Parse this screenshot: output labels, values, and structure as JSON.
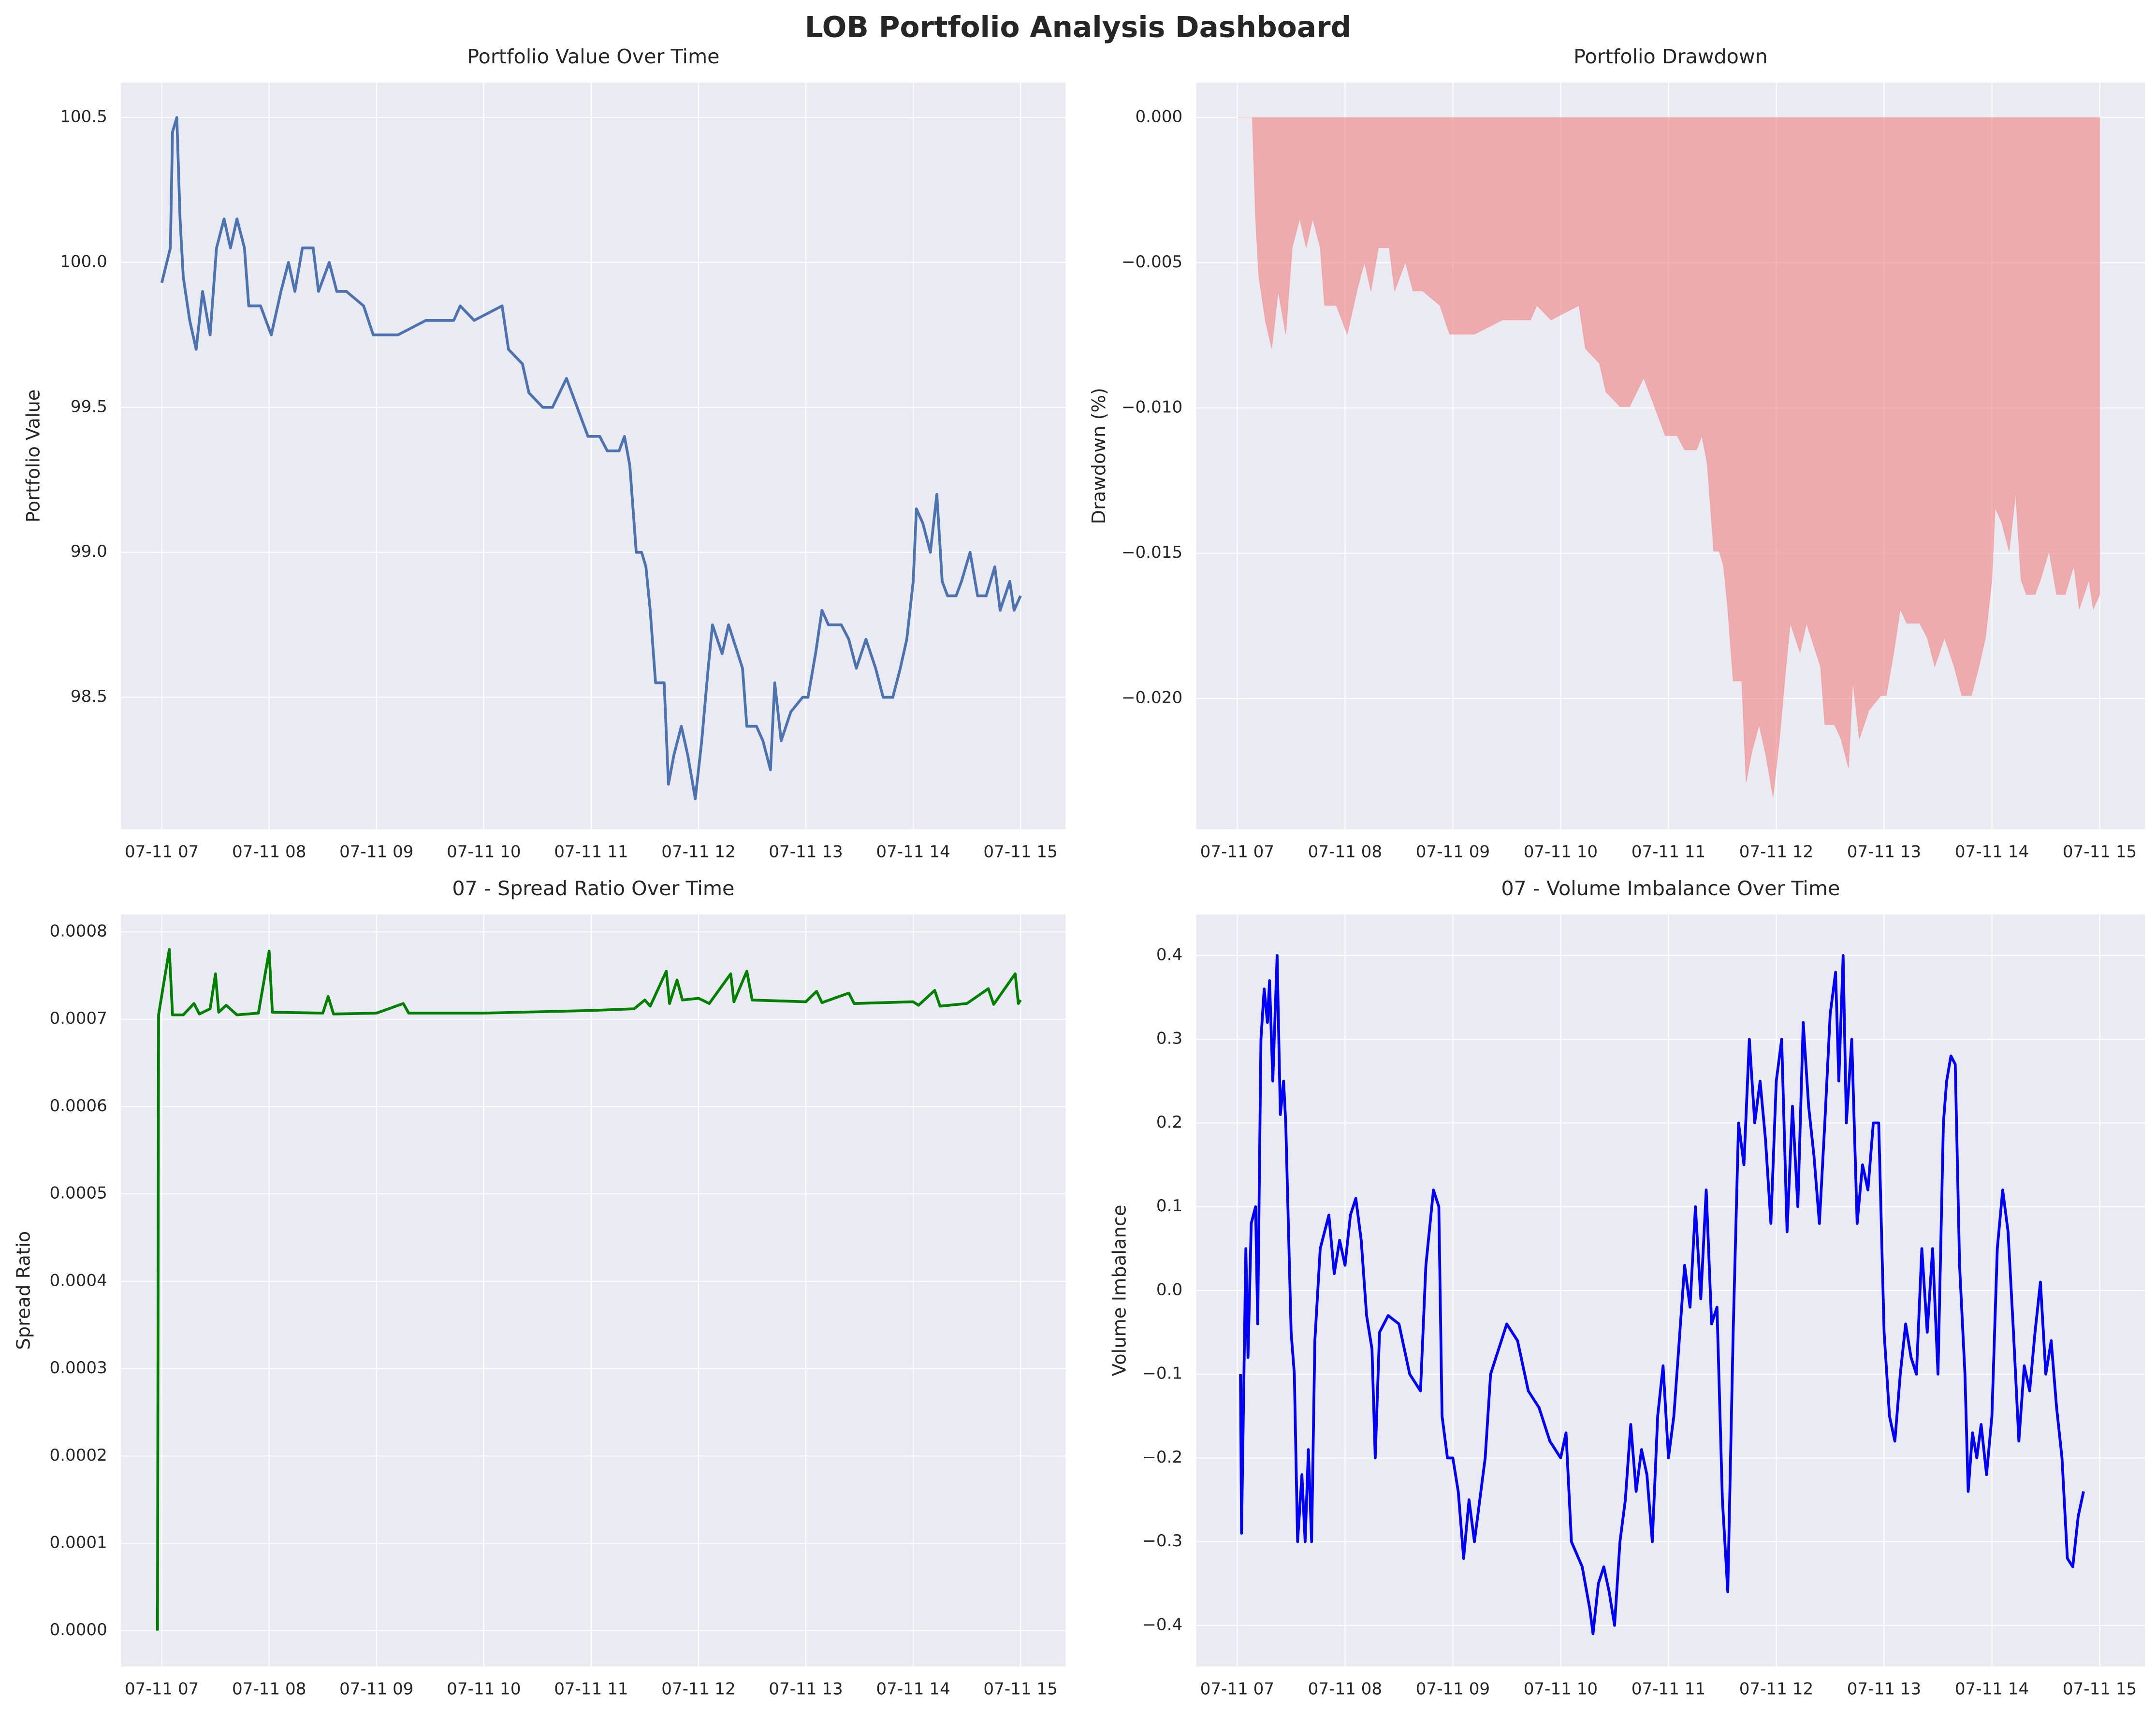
{
  "title": "LOB Portfolio Analysis Dashboard",
  "chart_data": [
    {
      "type": "line",
      "title": "Portfolio Value Over Time",
      "ylabel": "Portfolio Value",
      "color": "#4c72b0",
      "grid": true,
      "x": [
        7.0,
        7.08,
        7.1,
        7.14,
        7.17,
        7.2,
        7.26,
        7.32,
        7.38,
        7.45,
        7.51,
        7.58,
        7.64,
        7.7,
        7.77,
        7.81,
        7.92,
        8.02,
        8.11,
        8.18,
        8.24,
        8.31,
        8.41,
        8.46,
        8.56,
        8.63,
        8.72,
        8.88,
        8.97,
        9.2,
        9.46,
        9.72,
        9.78,
        9.91,
        10.17,
        10.23,
        10.36,
        10.42,
        10.55,
        10.64,
        10.77,
        10.87,
        10.97,
        11.08,
        11.15,
        11.26,
        11.31,
        11.36,
        11.42,
        11.47,
        11.51,
        11.55,
        11.6,
        11.68,
        11.72,
        11.77,
        11.84,
        11.9,
        11.97,
        12.03,
        12.09,
        12.13,
        12.22,
        12.28,
        12.41,
        12.45,
        12.54,
        12.6,
        12.67,
        12.71,
        12.77,
        12.86,
        12.97,
        13.02,
        13.09,
        13.15,
        13.21,
        13.33,
        13.4,
        13.47,
        13.56,
        13.65,
        13.72,
        13.81,
        13.88,
        13.94,
        14.0,
        14.03,
        14.09,
        14.16,
        14.22,
        14.27,
        14.32,
        14.4,
        14.45,
        14.53,
        14.6,
        14.68,
        14.76,
        14.81,
        14.9,
        14.94,
        15.0
      ],
      "values": [
        99.93,
        100.05,
        100.45,
        100.5,
        100.15,
        99.95,
        99.8,
        99.7,
        99.9,
        99.75,
        100.05,
        100.15,
        100.05,
        100.15,
        100.05,
        99.85,
        99.85,
        99.75,
        99.9,
        100.0,
        99.9,
        100.05,
        100.05,
        99.9,
        100.0,
        99.9,
        99.9,
        99.85,
        99.75,
        99.75,
        99.8,
        99.8,
        99.85,
        99.8,
        99.85,
        99.7,
        99.65,
        99.55,
        99.5,
        99.5,
        99.6,
        99.5,
        99.4,
        99.4,
        99.35,
        99.35,
        99.4,
        99.3,
        99.0,
        99.0,
        98.95,
        98.8,
        98.55,
        98.55,
        98.2,
        98.3,
        98.4,
        98.3,
        98.15,
        98.35,
        98.6,
        98.75,
        98.65,
        98.75,
        98.6,
        98.4,
        98.4,
        98.35,
        98.25,
        98.55,
        98.35,
        98.45,
        98.5,
        98.5,
        98.65,
        98.8,
        98.75,
        98.75,
        98.7,
        98.6,
        98.7,
        98.6,
        98.5,
        98.5,
        98.6,
        98.7,
        98.9,
        99.15,
        99.1,
        99.0,
        99.2,
        98.9,
        98.85,
        98.85,
        98.9,
        99.0,
        98.85,
        98.85,
        98.95,
        98.8,
        98.9,
        98.8,
        98.85
      ],
      "xlim": [
        6.62,
        15.42
      ],
      "xticks": [
        {
          "value": 7,
          "label": "07-11 07"
        },
        {
          "value": 8,
          "label": "07-11 08"
        },
        {
          "value": 9,
          "label": "07-11 09"
        },
        {
          "value": 10,
          "label": "07-11 10"
        },
        {
          "value": 11,
          "label": "07-11 11"
        },
        {
          "value": 12,
          "label": "07-11 12"
        },
        {
          "value": 13,
          "label": "07-11 13"
        },
        {
          "value": 14,
          "label": "07-11 14"
        },
        {
          "value": 15,
          "label": "07-11 15"
        }
      ],
      "ylim": [
        98.045,
        100.62
      ],
      "yticks": [
        98.5,
        {
          "value": 99,
          "label": "99.0"
        },
        99.5,
        {
          "value": 100,
          "label": "100.0"
        },
        100.5
      ]
    },
    {
      "type": "area",
      "title": "Portfolio Drawdown",
      "ylabel": "Drawdown (%)",
      "color": "#f08080",
      "grid": true,
      "x": [
        7.0,
        7.08,
        7.1,
        7.14,
        7.17,
        7.2,
        7.26,
        7.32,
        7.38,
        7.45,
        7.51,
        7.58,
        7.64,
        7.7,
        7.77,
        7.81,
        7.92,
        8.02,
        8.11,
        8.18,
        8.24,
        8.31,
        8.41,
        8.46,
        8.56,
        8.63,
        8.72,
        8.88,
        8.97,
        9.2,
        9.46,
        9.72,
        9.78,
        9.91,
        10.17,
        10.23,
        10.36,
        10.42,
        10.55,
        10.64,
        10.77,
        10.87,
        10.97,
        11.08,
        11.15,
        11.26,
        11.31,
        11.36,
        11.42,
        11.47,
        11.51,
        11.55,
        11.6,
        11.68,
        11.72,
        11.77,
        11.84,
        11.9,
        11.97,
        12.03,
        12.09,
        12.13,
        12.22,
        12.28,
        12.41,
        12.45,
        12.54,
        12.6,
        12.67,
        12.71,
        12.77,
        12.86,
        12.97,
        13.02,
        13.09,
        13.15,
        13.21,
        13.33,
        13.4,
        13.47,
        13.56,
        13.65,
        13.72,
        13.81,
        13.88,
        13.94,
        14.0,
        14.03,
        14.09,
        14.16,
        14.22,
        14.27,
        14.32,
        14.4,
        14.45,
        14.53,
        14.6,
        14.68,
        14.76,
        14.81,
        14.9,
        14.94,
        15.0
      ],
      "values": [
        0,
        0,
        0,
        0,
        -0.00348,
        -0.00547,
        -0.00697,
        -0.00796,
        -0.00597,
        -0.00746,
        -0.00448,
        -0.00348,
        -0.00448,
        -0.00348,
        -0.00448,
        -0.00647,
        -0.00647,
        -0.00746,
        -0.00597,
        -0.00498,
        -0.00597,
        -0.00448,
        -0.00448,
        -0.00597,
        -0.00498,
        -0.00597,
        -0.00597,
        -0.00647,
        -0.00746,
        -0.00746,
        -0.00697,
        -0.00697,
        -0.00647,
        -0.00697,
        -0.00647,
        -0.00796,
        -0.00846,
        -0.00945,
        -0.00995,
        -0.00995,
        -0.00896,
        -0.00995,
        -0.01095,
        -0.01095,
        -0.01144,
        -0.01144,
        -0.01095,
        -0.01194,
        -0.01493,
        -0.01493,
        -0.01542,
        -0.01692,
        -0.0194,
        -0.0194,
        -0.02289,
        -0.02189,
        -0.0209,
        -0.02189,
        -0.02338,
        -0.02139,
        -0.0189,
        -0.01741,
        -0.01841,
        -0.01741,
        -0.0189,
        -0.0209,
        -0.0209,
        -0.02139,
        -0.02239,
        -0.0194,
        -0.02139,
        -0.0204,
        -0.0199,
        -0.0199,
        -0.01841,
        -0.01692,
        -0.01741,
        -0.01741,
        -0.01791,
        -0.0189,
        -0.01791,
        -0.0189,
        -0.0199,
        -0.0199,
        -0.0189,
        -0.01791,
        -0.01592,
        -0.01343,
        -0.01393,
        -0.01493,
        -0.01294,
        -0.01592,
        -0.01642,
        -0.01642,
        -0.01592,
        -0.01493,
        -0.01642,
        -0.01642,
        -0.01542,
        -0.01692,
        -0.01592,
        -0.01692,
        -0.01642
      ],
      "xlim": [
        6.62,
        15.42
      ],
      "xticks": [
        {
          "value": 7,
          "label": "07-11 07"
        },
        {
          "value": 8,
          "label": "07-11 08"
        },
        {
          "value": 9,
          "label": "07-11 09"
        },
        {
          "value": 10,
          "label": "07-11 10"
        },
        {
          "value": 11,
          "label": "07-11 11"
        },
        {
          "value": 12,
          "label": "07-11 12"
        },
        {
          "value": 13,
          "label": "07-11 13"
        },
        {
          "value": 14,
          "label": "07-11 14"
        },
        {
          "value": 15,
          "label": "07-11 15"
        }
      ],
      "ylim": [
        -0.0245,
        0.0012
      ],
      "yticks": [
        {
          "value": 0,
          "label": "0.000"
        },
        {
          "value": -0.005,
          "label": "−0.005"
        },
        {
          "value": -0.01,
          "label": "−0.010"
        },
        {
          "value": -0.015,
          "label": "−0.015"
        },
        {
          "value": -0.02,
          "label": "−0.020"
        }
      ]
    },
    {
      "type": "line",
      "title": "07 - Spread Ratio Over Time",
      "ylabel": "Spread Ratio",
      "color": "#008000",
      "grid": true,
      "x": [
        6.96,
        6.97,
        7.07,
        7.1,
        7.2,
        7.3,
        7.35,
        7.45,
        7.5,
        7.53,
        7.6,
        7.7,
        7.9,
        8.0,
        8.03,
        8.5,
        8.55,
        8.6,
        9.0,
        9.25,
        9.3,
        10.0,
        11.0,
        11.4,
        11.5,
        11.55,
        11.7,
        11.73,
        11.8,
        11.85,
        12.0,
        12.1,
        12.3,
        12.33,
        12.45,
        12.5,
        13.0,
        13.1,
        13.15,
        13.4,
        13.45,
        14.0,
        14.05,
        14.2,
        14.25,
        14.5,
        14.7,
        14.75,
        14.95,
        14.98,
        15.0
      ],
      "values": [
        0.0,
        0.000705,
        0.00078,
        0.000705,
        0.000705,
        0.000718,
        0.000706,
        0.000712,
        0.000752,
        0.000708,
        0.000716,
        0.000705,
        0.000707,
        0.000778,
        0.000708,
        0.000707,
        0.000726,
        0.000706,
        0.000707,
        0.000718,
        0.000707,
        0.000707,
        0.00071,
        0.000712,
        0.000722,
        0.000715,
        0.000755,
        0.000718,
        0.000745,
        0.000722,
        0.000724,
        0.000718,
        0.000752,
        0.00072,
        0.000755,
        0.000722,
        0.00072,
        0.000732,
        0.000719,
        0.00073,
        0.000718,
        0.00072,
        0.000716,
        0.000733,
        0.000715,
        0.000718,
        0.000735,
        0.000717,
        0.000752,
        0.000718,
        0.000722
      ],
      "xlim": [
        6.62,
        15.42
      ],
      "xticks": [
        {
          "value": 7,
          "label": "07-11 07"
        },
        {
          "value": 8,
          "label": "07-11 08"
        },
        {
          "value": 9,
          "label": "07-11 09"
        },
        {
          "value": 10,
          "label": "07-11 10"
        },
        {
          "value": 11,
          "label": "07-11 11"
        },
        {
          "value": 12,
          "label": "07-11 12"
        },
        {
          "value": 13,
          "label": "07-11 13"
        },
        {
          "value": 14,
          "label": "07-11 14"
        },
        {
          "value": 15,
          "label": "07-11 15"
        }
      ],
      "ylim": [
        -4.1e-05,
        0.00082
      ],
      "yticks": [
        {
          "value": 0,
          "label": "0.0000"
        },
        {
          "value": 0.0001,
          "label": "0.0001"
        },
        {
          "value": 0.0002,
          "label": "0.0002"
        },
        {
          "value": 0.0003,
          "label": "0.0003"
        },
        {
          "value": 0.0004,
          "label": "0.0004"
        },
        {
          "value": 0.0005,
          "label": "0.0005"
        },
        {
          "value": 0.0006,
          "label": "0.0006"
        },
        {
          "value": 0.0007,
          "label": "0.0007"
        },
        {
          "value": 0.0008,
          "label": "0.0008"
        }
      ]
    },
    {
      "type": "line",
      "title": "07 - Volume Imbalance Over Time",
      "ylabel": "Volume Imbalance",
      "color": "#0000ff",
      "grid": true,
      "x": [
        7.03,
        7.04,
        7.08,
        7.1,
        7.13,
        7.17,
        7.19,
        7.22,
        7.25,
        7.28,
        7.3,
        7.33,
        7.37,
        7.4,
        7.43,
        7.45,
        7.5,
        7.53,
        7.56,
        7.6,
        7.63,
        7.66,
        7.69,
        7.72,
        7.77,
        7.85,
        7.9,
        7.95,
        8.0,
        8.05,
        8.1,
        8.15,
        8.2,
        8.25,
        8.28,
        8.32,
        8.4,
        8.5,
        8.6,
        8.7,
        8.75,
        8.82,
        8.87,
        8.9,
        8.95,
        9.0,
        9.05,
        9.1,
        9.15,
        9.2,
        9.3,
        9.35,
        9.4,
        9.5,
        9.6,
        9.7,
        9.8,
        9.9,
        10.0,
        10.05,
        10.1,
        10.2,
        10.27,
        10.3,
        10.35,
        10.4,
        10.45,
        10.5,
        10.55,
        10.6,
        10.65,
        10.7,
        10.75,
        10.8,
        10.85,
        10.9,
        10.95,
        11.0,
        11.05,
        11.1,
        11.15,
        11.2,
        11.25,
        11.3,
        11.35,
        11.4,
        11.45,
        11.5,
        11.55,
        11.6,
        11.65,
        11.7,
        11.75,
        11.8,
        11.85,
        11.9,
        11.95,
        12.0,
        12.05,
        12.1,
        12.15,
        12.2,
        12.25,
        12.3,
        12.35,
        12.4,
        12.45,
        12.5,
        12.55,
        12.58,
        12.62,
        12.65,
        12.7,
        12.75,
        12.8,
        12.85,
        12.9,
        12.95,
        13.0,
        13.05,
        13.1,
        13.15,
        13.2,
        13.25,
        13.3,
        13.35,
        13.4,
        13.45,
        13.5,
        13.55,
        13.58,
        13.62,
        13.66,
        13.7,
        13.75,
        13.78,
        13.82,
        13.86,
        13.9,
        13.95,
        14.0,
        14.05,
        14.1,
        14.15,
        14.2,
        14.25,
        14.3,
        14.35,
        14.4,
        14.45,
        14.5,
        14.55,
        14.6,
        14.65,
        14.7,
        14.75,
        14.8,
        14.85
      ],
      "values": [
        -0.1,
        -0.29,
        0.05,
        -0.08,
        0.08,
        0.1,
        -0.04,
        0.3,
        0.36,
        0.32,
        0.37,
        0.25,
        0.4,
        0.21,
        0.25,
        0.2,
        -0.05,
        -0.1,
        -0.3,
        -0.22,
        -0.3,
        -0.19,
        -0.3,
        -0.06,
        0.05,
        0.09,
        0.02,
        0.06,
        0.03,
        0.09,
        0.11,
        0.06,
        -0.03,
        -0.07,
        -0.2,
        -0.05,
        -0.03,
        -0.04,
        -0.1,
        -0.12,
        0.03,
        0.12,
        0.1,
        -0.15,
        -0.2,
        -0.2,
        -0.24,
        -0.32,
        -0.25,
        -0.3,
        -0.2,
        -0.1,
        -0.08,
        -0.04,
        -0.06,
        -0.12,
        -0.14,
        -0.18,
        -0.2,
        -0.17,
        -0.3,
        -0.33,
        -0.38,
        -0.41,
        -0.35,
        -0.33,
        -0.36,
        -0.4,
        -0.3,
        -0.25,
        -0.16,
        -0.24,
        -0.19,
        -0.22,
        -0.3,
        -0.15,
        -0.09,
        -0.2,
        -0.15,
        -0.06,
        0.03,
        -0.02,
        0.1,
        -0.01,
        0.12,
        -0.04,
        -0.02,
        -0.25,
        -0.36,
        -0.05,
        0.2,
        0.15,
        0.3,
        0.2,
        0.25,
        0.18,
        0.08,
        0.25,
        0.3,
        0.07,
        0.22,
        0.1,
        0.32,
        0.22,
        0.16,
        0.08,
        0.2,
        0.33,
        0.38,
        0.25,
        0.4,
        0.2,
        0.3,
        0.08,
        0.15,
        0.12,
        0.2,
        0.2,
        -0.05,
        -0.15,
        -0.18,
        -0.1,
        -0.04,
        -0.08,
        -0.1,
        0.05,
        -0.05,
        0.05,
        -0.1,
        0.2,
        0.25,
        0.28,
        0.27,
        0.03,
        -0.1,
        -0.24,
        -0.17,
        -0.2,
        -0.16,
        -0.22,
        -0.15,
        0.05,
        0.12,
        0.07,
        -0.05,
        -0.18,
        -0.09,
        -0.12,
        -0.05,
        0.01,
        -0.1,
        -0.06,
        -0.14,
        -0.2,
        -0.32,
        -0.33,
        -0.27,
        -0.24
      ],
      "xlim": [
        6.62,
        15.42
      ],
      "xticks": [
        {
          "value": 7,
          "label": "07-11 07"
        },
        {
          "value": 8,
          "label": "07-11 08"
        },
        {
          "value": 9,
          "label": "07-11 09"
        },
        {
          "value": 10,
          "label": "07-11 10"
        },
        {
          "value": 11,
          "label": "07-11 11"
        },
        {
          "value": 12,
          "label": "07-11 12"
        },
        {
          "value": 13,
          "label": "07-11 13"
        },
        {
          "value": 14,
          "label": "07-11 14"
        },
        {
          "value": 15,
          "label": "07-11 15"
        }
      ],
      "ylim": [
        -0.449,
        0.449
      ],
      "yticks": [
        {
          "value": -0.4,
          "label": "−0.4"
        },
        {
          "value": -0.3,
          "label": "−0.3"
        },
        {
          "value": -0.2,
          "label": "−0.2"
        },
        {
          "value": -0.1,
          "label": "−0.1"
        },
        {
          "value": 0,
          "label": "0.0"
        },
        0.1,
        0.2,
        0.3,
        0.4
      ]
    }
  ]
}
